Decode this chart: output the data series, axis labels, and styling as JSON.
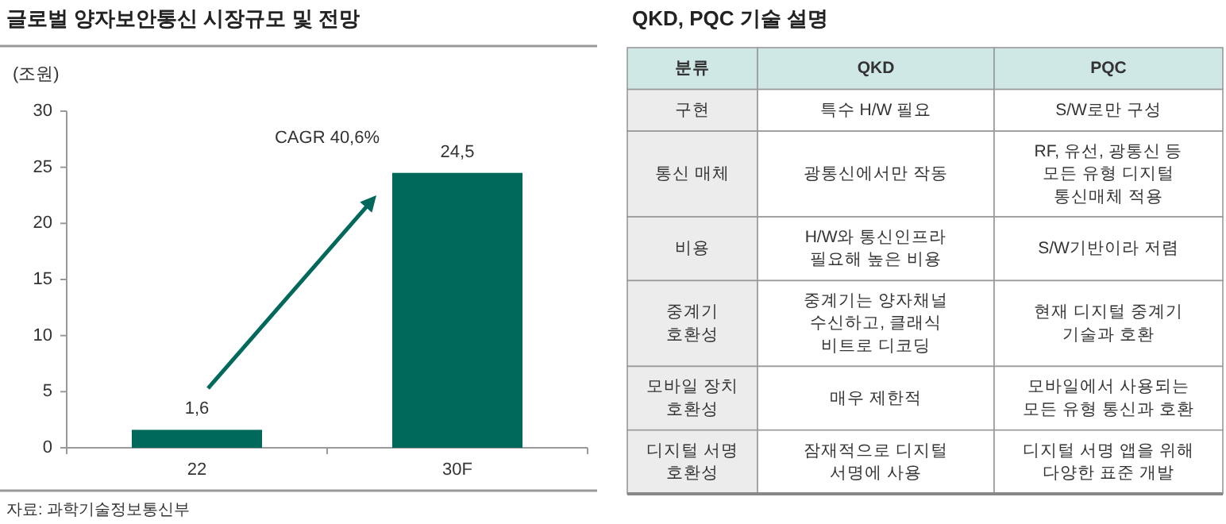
{
  "chart_data": [
    {
      "type": "bar",
      "title": "글로벌 양자보안통신 시장규모 및 전망",
      "ylabel": "(조원)",
      "categories": [
        "22",
        "30F"
      ],
      "values": [
        1.6,
        24.5
      ],
      "value_labels": [
        "1,6",
        "24,5"
      ],
      "color": "#00695c",
      "ylim": [
        0,
        30
      ],
      "yticks": [
        0,
        5,
        10,
        15,
        20,
        25,
        30
      ],
      "grid": false,
      "annotations": [
        "CAGR 40,6%",
        "자료: 과학기술정보통신부"
      ]
    },
    {
      "type": "other",
      "title": "QKD, PQC 기술 설명",
      "annotations": [
        "분류",
        "QKD",
        "PQC",
        "구현",
        "특수 H/W 필요",
        "S/W로만 구성",
        "통신 매체",
        "광통신에서만 작동",
        "RF, 유선, 광통신 등\n모든 유형 디지털\n통신매체 적용",
        "비용",
        "H/W와 통신인프라\n필요해 높은 비용",
        "S/W기반이라 저렴",
        "중계기\n호환성",
        "중계기는 양자채널\n수신하고, 클래식\n비트로 디코딩",
        "현재 디지털 중계기\n기술과 호환",
        "모바일 장치\n호환성",
        "매우 제한적",
        "모바일에서 사용되는\n모든 유형 통신과 호환",
        "디지털 서명\n호환성",
        "잠재적으로 디지털\n서명에 사용",
        "디지털 서명 앱을 위해\n다양한 표준 개발"
      ]
    }
  ]
}
